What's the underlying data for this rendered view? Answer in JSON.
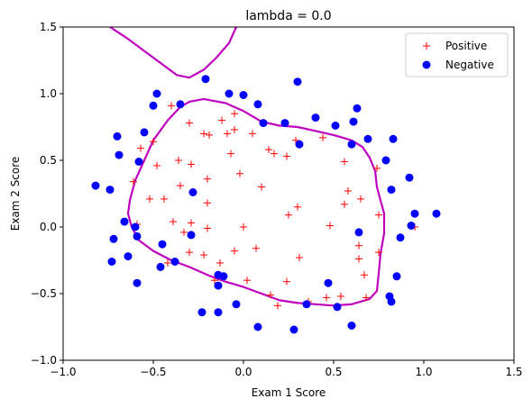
{
  "chart_data": {
    "type": "scatter",
    "title": "lambda = 0.0",
    "xlabel": "Exam 1 Score",
    "ylabel": "Exam 2 Score",
    "xlim": [
      -1.0,
      1.5
    ],
    "ylim": [
      -1.0,
      1.5
    ],
    "x_ticks": [
      -1.0,
      -0.5,
      0.0,
      0.5,
      1.0,
      1.5
    ],
    "y_ticks": [
      -1.0,
      -0.5,
      0.0,
      0.5,
      1.0,
      1.5
    ],
    "x_tick_labels": [
      "−1.0",
      "−0.5",
      "0.0",
      "0.5",
      "1.0",
      "1.5"
    ],
    "y_tick_labels": [
      "−1.0",
      "−0.5",
      "0.0",
      "0.5",
      "1.0",
      "1.5"
    ],
    "legend_position": "top-right",
    "grid": false,
    "series": [
      {
        "name": "Positive",
        "marker": "plus",
        "color": "#ff0000",
        "points": [
          [
            0.95,
            0.0
          ],
          [
            -0.22,
            0.7
          ],
          [
            -0.12,
            0.8
          ],
          [
            -0.4,
            0.91
          ],
          [
            -0.3,
            0.78
          ],
          [
            -0.19,
            0.69
          ],
          [
            -0.09,
            0.7
          ],
          [
            0.05,
            0.7
          ],
          [
            0.14,
            0.58
          ],
          [
            0.17,
            0.55
          ],
          [
            0.24,
            0.53
          ],
          [
            0.29,
            0.65
          ],
          [
            0.44,
            0.67
          ],
          [
            0.56,
            0.49
          ],
          [
            0.58,
            0.27
          ],
          [
            0.65,
            0.21
          ],
          [
            0.74,
            0.44
          ],
          [
            0.75,
            0.09
          ],
          [
            -0.07,
            0.55
          ],
          [
            -0.02,
            0.4
          ],
          [
            -0.2,
            0.36
          ],
          [
            -0.29,
            0.47
          ],
          [
            -0.36,
            0.5
          ],
          [
            -0.48,
            0.46
          ],
          [
            -0.57,
            0.59
          ],
          [
            -0.5,
            0.64
          ],
          [
            -0.61,
            0.34
          ],
          [
            -0.52,
            0.21
          ],
          [
            -0.44,
            0.21
          ],
          [
            -0.35,
            0.31
          ],
          [
            -0.2,
            0.18
          ],
          [
            -0.59,
            0.02
          ],
          [
            -0.39,
            0.04
          ],
          [
            -0.29,
            0.03
          ],
          [
            -0.2,
            -0.01
          ],
          [
            -0.22,
            -0.21
          ],
          [
            -0.3,
            -0.19
          ],
          [
            -0.13,
            -0.27
          ],
          [
            -0.42,
            -0.27
          ],
          [
            -0.16,
            -0.4
          ],
          [
            -0.05,
            -0.18
          ],
          [
            0.07,
            -0.16
          ],
          [
            0.02,
            -0.4
          ],
          [
            0.15,
            -0.51
          ],
          [
            0.19,
            -0.59
          ],
          [
            0.24,
            -0.41
          ],
          [
            0.31,
            -0.23
          ],
          [
            0.36,
            -0.56
          ],
          [
            0.46,
            -0.53
          ],
          [
            0.54,
            -0.52
          ],
          [
            0.48,
            0.01
          ],
          [
            0.64,
            -0.14
          ],
          [
            0.64,
            -0.24
          ],
          [
            0.75,
            -0.19
          ],
          [
            0.68,
            -0.53
          ],
          [
            0.67,
            -0.36
          ],
          [
            -0.33,
            -0.04
          ],
          [
            0.25,
            0.09
          ],
          [
            0.56,
            0.17
          ],
          [
            0.0,
            0.0
          ],
          [
            -0.05,
            0.73
          ],
          [
            -0.05,
            0.85
          ],
          [
            0.3,
            0.15
          ],
          [
            0.1,
            0.3
          ]
        ]
      },
      {
        "name": "Negative",
        "marker": "circle",
        "color": "#0000ff",
        "points": [
          [
            -0.48,
            1.0
          ],
          [
            -0.5,
            0.91
          ],
          [
            -0.35,
            0.92
          ],
          [
            -0.21,
            1.11
          ],
          [
            -0.08,
            1.0
          ],
          [
            0.0,
            0.99
          ],
          [
            0.08,
            0.92
          ],
          [
            0.11,
            0.78
          ],
          [
            0.23,
            0.78
          ],
          [
            0.3,
            1.09
          ],
          [
            0.31,
            0.62
          ],
          [
            0.4,
            0.82
          ],
          [
            0.51,
            0.76
          ],
          [
            0.61,
            0.79
          ],
          [
            0.6,
            0.62
          ],
          [
            0.69,
            0.66
          ],
          [
            0.83,
            0.66
          ],
          [
            0.79,
            0.5
          ],
          [
            0.82,
            0.28
          ],
          [
            0.92,
            0.37
          ],
          [
            0.95,
            0.1
          ],
          [
            0.93,
            0.01
          ],
          [
            0.87,
            -0.08
          ],
          [
            0.85,
            -0.37
          ],
          [
            0.81,
            -0.52
          ],
          [
            0.82,
            -0.56
          ],
          [
            0.6,
            -0.74
          ],
          [
            0.52,
            -0.6
          ],
          [
            0.47,
            -0.42
          ],
          [
            0.64,
            -0.04
          ],
          [
            0.35,
            -0.58
          ],
          [
            0.28,
            -0.77
          ],
          [
            0.08,
            -0.75
          ],
          [
            -0.04,
            -0.58
          ],
          [
            -0.14,
            -0.64
          ],
          [
            -0.23,
            -0.64
          ],
          [
            -0.14,
            -0.44
          ],
          [
            -0.11,
            -0.37
          ],
          [
            -0.38,
            -0.26
          ],
          [
            -0.46,
            -0.3
          ],
          [
            -0.45,
            -0.13
          ],
          [
            -0.59,
            -0.07
          ],
          [
            -0.59,
            -0.42
          ],
          [
            -0.64,
            -0.22
          ],
          [
            -0.73,
            -0.26
          ],
          [
            -0.72,
            -0.09
          ],
          [
            -0.66,
            0.04
          ],
          [
            -0.74,
            0.28
          ],
          [
            -0.82,
            0.31
          ],
          [
            -0.58,
            0.49
          ],
          [
            -0.69,
            0.54
          ],
          [
            -0.55,
            0.71
          ],
          [
            -0.7,
            0.68
          ],
          [
            -0.28,
            0.26
          ],
          [
            -0.29,
            -0.06
          ],
          [
            1.07,
            0.1
          ],
          [
            -0.14,
            -0.36
          ],
          [
            0.63,
            0.89
          ],
          [
            -0.6,
            0.0
          ]
        ]
      }
    ],
    "decision_boundary": {
      "color": "#bf00bf",
      "closed_curve": [
        [
          -0.22,
          0.96
        ],
        [
          -0.1,
          0.93
        ],
        [
          0.0,
          0.87
        ],
        [
          0.1,
          0.79
        ],
        [
          0.2,
          0.76
        ],
        [
          0.3,
          0.75
        ],
        [
          0.4,
          0.72
        ],
        [
          0.5,
          0.69
        ],
        [
          0.6,
          0.65
        ],
        [
          0.66,
          0.6
        ],
        [
          0.7,
          0.52
        ],
        [
          0.73,
          0.42
        ],
        [
          0.74,
          0.3
        ],
        [
          0.76,
          0.2
        ],
        [
          0.78,
          0.1
        ],
        [
          0.78,
          -0.05
        ],
        [
          0.76,
          -0.2
        ],
        [
          0.75,
          -0.35
        ],
        [
          0.74,
          -0.48
        ],
        [
          0.7,
          -0.54
        ],
        [
          0.6,
          -0.58
        ],
        [
          0.5,
          -0.59
        ],
        [
          0.4,
          -0.58
        ],
        [
          0.3,
          -0.57
        ],
        [
          0.2,
          -0.55
        ],
        [
          0.1,
          -0.5
        ],
        [
          0.0,
          -0.45
        ],
        [
          -0.1,
          -0.41
        ],
        [
          -0.2,
          -0.36
        ],
        [
          -0.3,
          -0.3
        ],
        [
          -0.4,
          -0.25
        ],
        [
          -0.5,
          -0.18
        ],
        [
          -0.58,
          -0.1
        ],
        [
          -0.62,
          0.0
        ],
        [
          -0.64,
          0.1
        ],
        [
          -0.63,
          0.2
        ],
        [
          -0.6,
          0.35
        ],
        [
          -0.55,
          0.5
        ],
        [
          -0.5,
          0.65
        ],
        [
          -0.42,
          0.8
        ],
        [
          -0.35,
          0.9
        ],
        [
          -0.3,
          0.94
        ],
        [
          -0.22,
          0.96
        ]
      ],
      "upper_curve": [
        [
          -0.74,
          1.5
        ],
        [
          -0.65,
          1.42
        ],
        [
          -0.55,
          1.32
        ],
        [
          -0.45,
          1.22
        ],
        [
          -0.37,
          1.14
        ],
        [
          -0.3,
          1.12
        ],
        [
          -0.22,
          1.18
        ],
        [
          -0.15,
          1.27
        ],
        [
          -0.08,
          1.38
        ],
        [
          -0.04,
          1.5
        ]
      ]
    }
  }
}
